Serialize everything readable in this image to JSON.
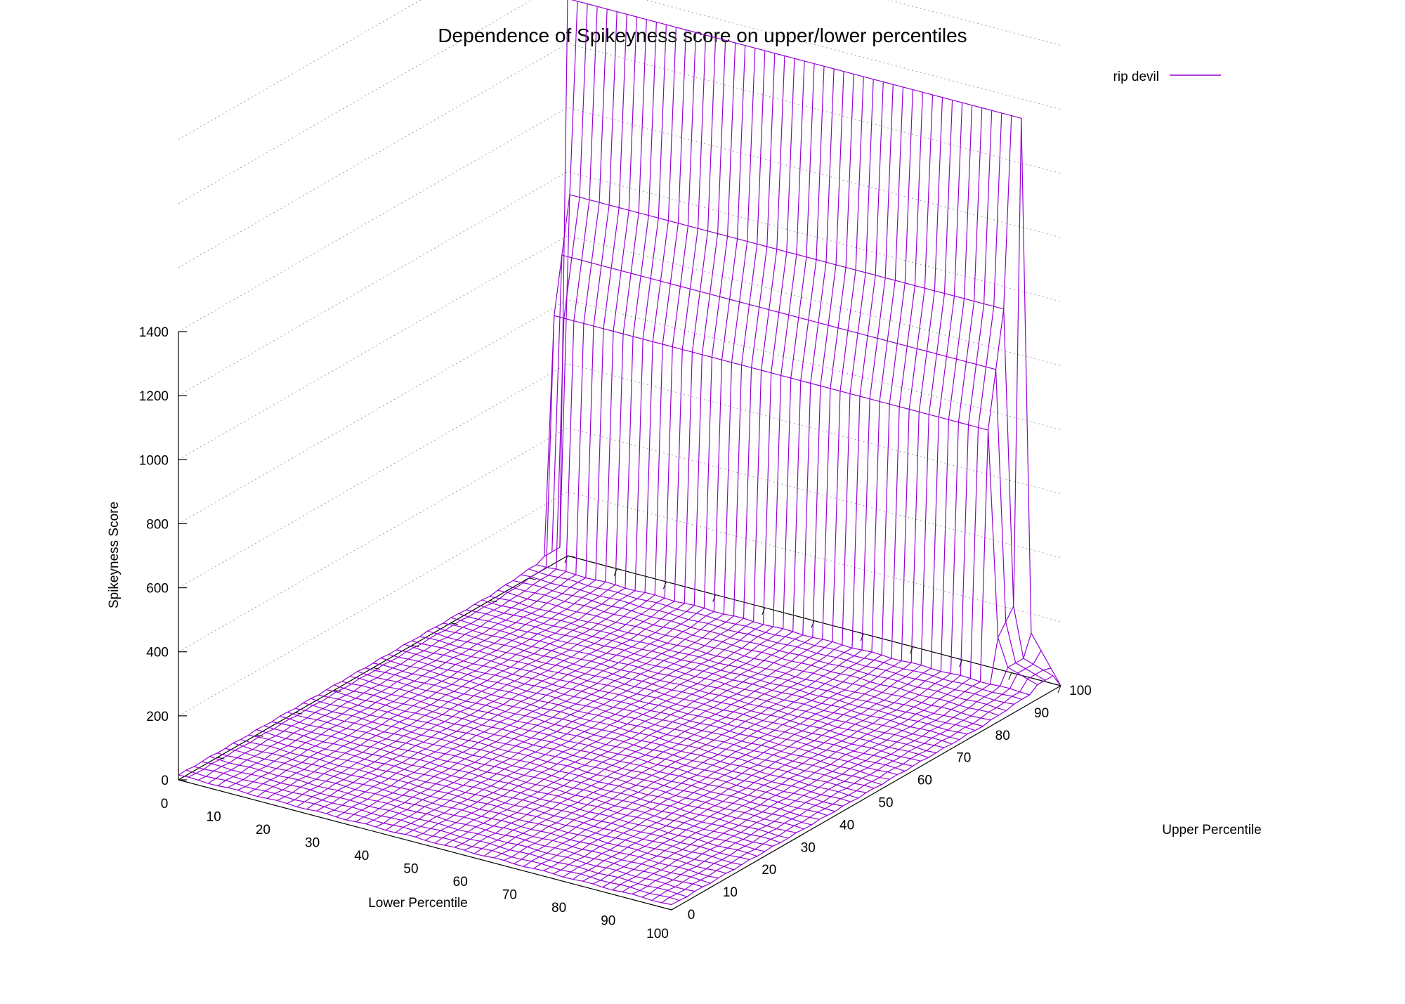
{
  "chart_data": {
    "type": "surface",
    "title": "Dependence of Spikeyness score on upper/lower percentiles",
    "xlabel": "Lower Percentile",
    "ylabel": "Upper Percentile",
    "zlabel": "Spikeyness Score",
    "xlim": [
      0,
      100
    ],
    "ylim": [
      0,
      100
    ],
    "zlim": [
      0,
      1400
    ],
    "x_ticks": [
      "0",
      "10",
      "20",
      "30",
      "40",
      "50",
      "60",
      "70",
      "80",
      "90",
      "100"
    ],
    "y_ticks": [
      "0",
      "10",
      "20",
      "30",
      "40",
      "50",
      "60",
      "70",
      "80",
      "90",
      "100"
    ],
    "z_ticks": [
      "0",
      "200",
      "400",
      "600",
      "800",
      "1000",
      "1200",
      "1400"
    ],
    "grid": true,
    "legend": {
      "position": "top-right",
      "entries": [
        {
          "name": "rip devil",
          "color": "#9400d3"
        }
      ]
    },
    "series_color": "#9400d3",
    "grid_resolution": 2,
    "surface_description_points": {
      "upper_percentile_100_row": [
        {
          "lower": 0,
          "score": 1740
        },
        {
          "lower": 2,
          "score": 1740
        },
        {
          "lower": 92,
          "score": 1740
        },
        {
          "lower": 94,
          "score": 140
        },
        {
          "lower": 100,
          "score": 0
        }
      ],
      "upper_percentile_98_row_peak": 1150,
      "upper_percentile_96_row_peak": 975,
      "upper_percentile_94_row_peak": 800,
      "base_level": 15
    }
  }
}
